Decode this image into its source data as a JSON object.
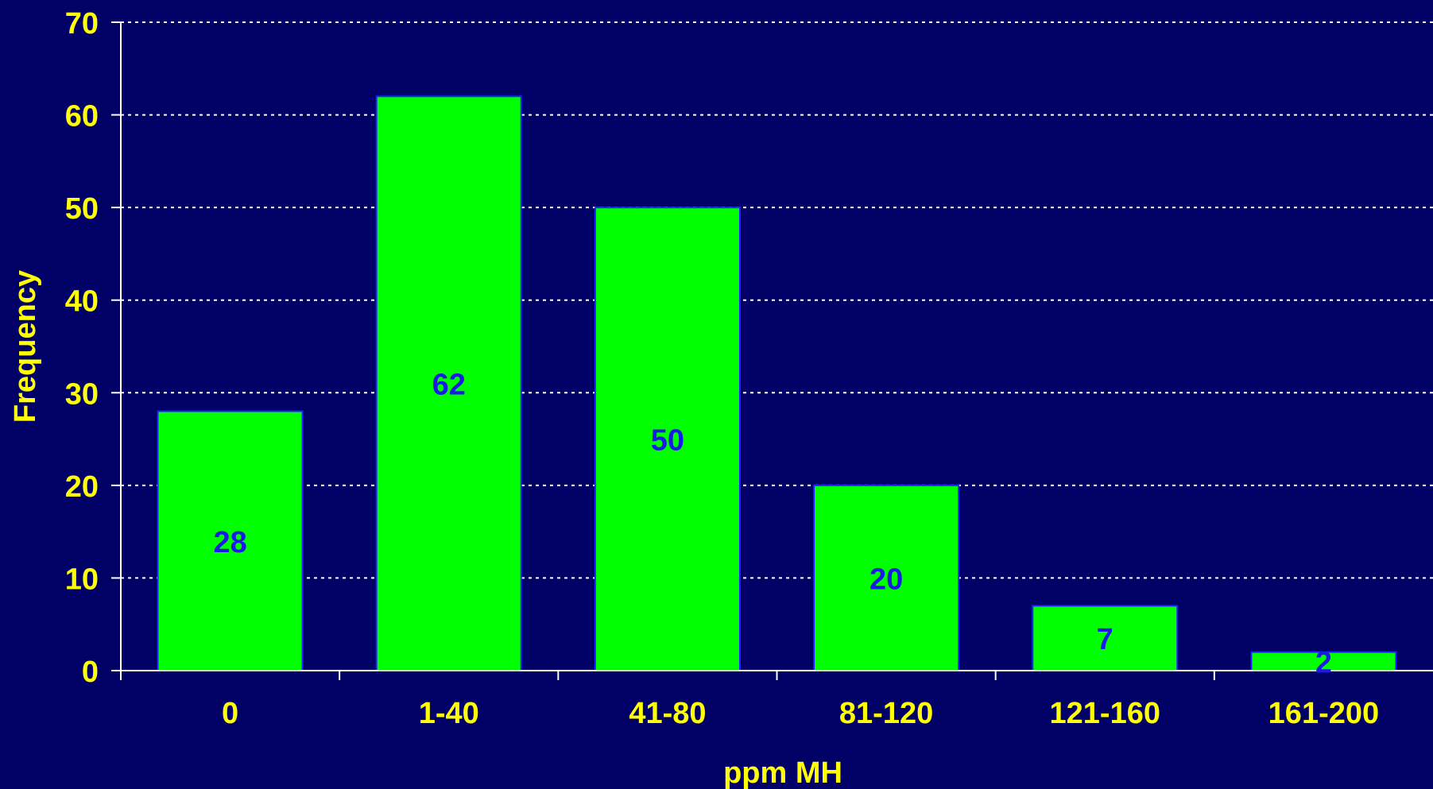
{
  "chart_data": {
    "type": "bar",
    "categories": [
      "0",
      "1-40",
      "41-80",
      "81-120",
      "121-160",
      "161-200"
    ],
    "values": [
      28,
      62,
      50,
      20,
      7,
      2
    ],
    "value_labels": [
      "28",
      "62",
      "50",
      "20",
      "7",
      "2"
    ],
    "title": "",
    "xlabel": "ppm MH",
    "ylabel": "Frequency",
    "ylim": [
      0,
      70
    ],
    "yticks": [
      0,
      10,
      20,
      30,
      40,
      50,
      60,
      70
    ],
    "ytick_labels": [
      "0",
      "10",
      "20",
      "30",
      "40",
      "50",
      "60",
      "70"
    ],
    "grid": true,
    "grid_style": "dotted",
    "legend": "none",
    "colors": {
      "background": "#000066",
      "bar_fill": "#00FF00",
      "bar_edge": "#2222FF",
      "axis_text": "#FFFF00",
      "value_label": "#1A1AE6",
      "axis_line": "#FFFFFF",
      "grid": "#FFFFFF"
    }
  }
}
